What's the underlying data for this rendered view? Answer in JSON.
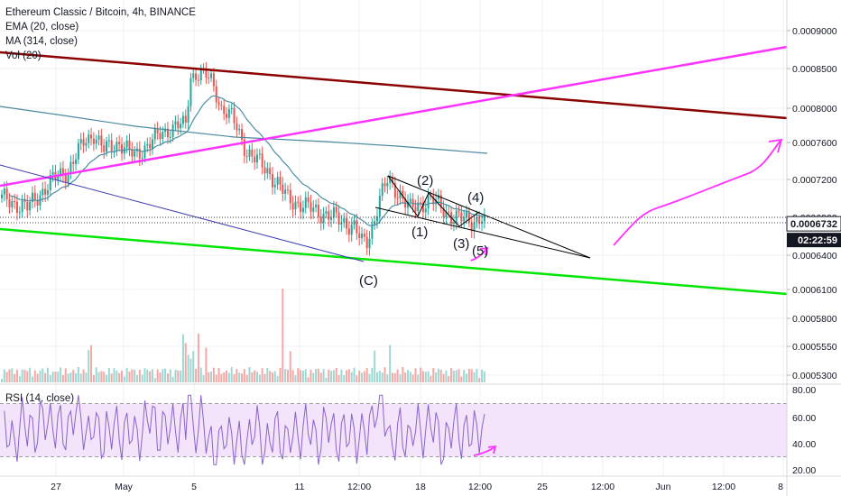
{
  "chart_data": {
    "type": "line",
    "legend": [
      "Ethereum Classic / Bitcoin, 4h, BINANCE",
      "EMA (20, close)",
      "MA (314, close)",
      "Vol (20)"
    ],
    "price_axis_ticks": [
      "0.0009000",
      "0.0008500",
      "0.0008000",
      "0.0007600",
      "0.0007200",
      "0.0006800",
      "0.0006400",
      "0.0006100",
      "0.0005800",
      "0.0005550",
      "0.0005300"
    ],
    "current_price": "0.0006732",
    "countdown": "02:22:59",
    "rsi_label": "RSI (14, close)",
    "rsi_axis_ticks": [
      "80.00",
      "60.00",
      "40.00",
      "20.00"
    ],
    "x_axis_ticks": [
      "27",
      "May",
      "5",
      "11",
      "12:00",
      "18",
      "12:00",
      "25",
      "12:00",
      "Jun",
      "12:00",
      "8"
    ],
    "wave_labels": [
      "(2)",
      "(4)",
      "(1)",
      "(3)",
      "(5)",
      "(C)"
    ],
    "colors": {
      "up": "#26a69a",
      "down": "#ef5350",
      "ema": "#4a90a4",
      "ma": "#4a8aa0",
      "channel_top": "#8b0000",
      "channel_bottom": "#00e600",
      "trend_magenta": "#ff33ff",
      "rsi_band": "#f3e3fb",
      "rsi_line": "#8b64c9",
      "wedge": "#000000"
    }
  }
}
